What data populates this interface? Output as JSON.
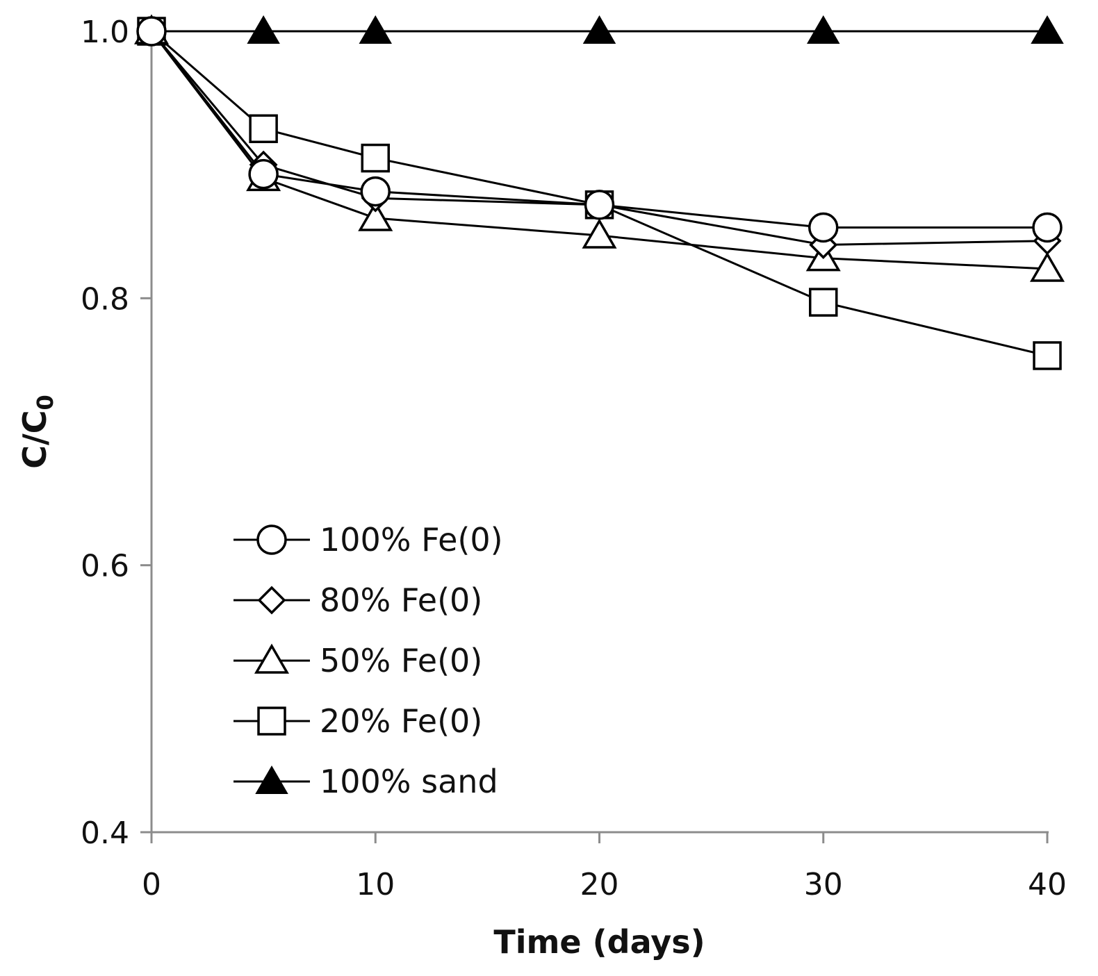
{
  "chart_data": {
    "type": "line",
    "title": "",
    "xlabel": "Time (days)",
    "ylabel": "C/C0",
    "ylabel_main": "C/C",
    "ylabel_sub": "0",
    "xlim": [
      0,
      40
    ],
    "ylim": [
      0.4,
      1.0
    ],
    "x_ticks": [
      0,
      10,
      20,
      30,
      40
    ],
    "x_tick_labels": [
      "0",
      "10",
      "20",
      "30",
      "40"
    ],
    "y_ticks": [
      0.4,
      0.6,
      0.8,
      1.0
    ],
    "y_tick_labels": [
      "0.4",
      "0.6",
      "0.8",
      "1.0"
    ],
    "x": [
      0,
      5,
      10,
      20,
      30,
      40
    ],
    "grid": false,
    "legend_position": "lower-left",
    "series": [
      {
        "name": "100% Fe(0)",
        "marker": "circle",
        "values": [
          1.0,
          0.893,
          0.88,
          0.87,
          0.853,
          0.853
        ]
      },
      {
        "name": "80% Fe(0)",
        "marker": "diamond",
        "values": [
          1.0,
          0.9,
          0.875,
          0.87,
          0.84,
          0.843
        ]
      },
      {
        "name": "50% Fe(0)",
        "marker": "triangle",
        "values": [
          1.0,
          0.89,
          0.86,
          0.847,
          0.83,
          0.822
        ]
      },
      {
        "name": "20% Fe(0)",
        "marker": "square",
        "values": [
          1.0,
          0.927,
          0.905,
          0.87,
          0.797,
          0.757
        ]
      },
      {
        "name": "100% sand",
        "marker": "triangle-filled",
        "values": [
          1.0,
          1.0,
          1.0,
          1.0,
          1.0,
          1.0
        ]
      }
    ]
  }
}
